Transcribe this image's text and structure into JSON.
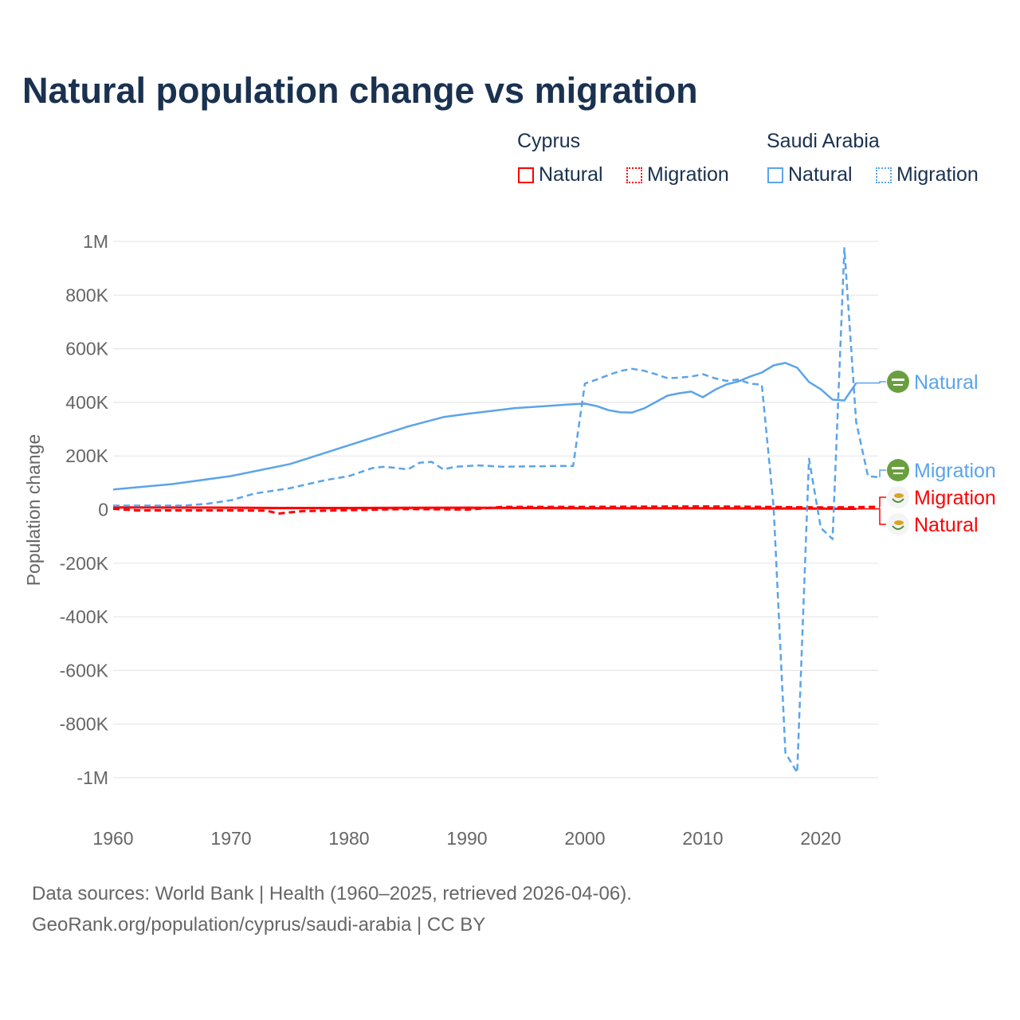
{
  "title": "Natural population change vs migration",
  "legend": {
    "groups": [
      {
        "name": "Cyprus",
        "color": "#ff0000",
        "items": [
          "Natural",
          "Migration"
        ]
      },
      {
        "name": "Saudi Arabia",
        "color": "#5ba4ea",
        "items": [
          "Natural",
          "Migration"
        ]
      }
    ]
  },
  "footer": {
    "line1": "Data sources: World Bank | Health (1960–2025, retrieved 2026-04-06).",
    "line2": "GeoRank.org/population/cyprus/saudi-arabia | CC BY"
  },
  "chart_data": {
    "type": "line",
    "title": "Natural population change vs migration",
    "ylabel": "Population change",
    "xlabel": "",
    "xlim": [
      1960,
      2025
    ],
    "ylim": [
      -1000000,
      1000000
    ],
    "xticks": [
      "1960",
      "1970",
      "1980",
      "1990",
      "2000",
      "2010",
      "2020"
    ],
    "yticks": [
      {
        "v": 1000000,
        "l": "1M"
      },
      {
        "v": 800000,
        "l": "800K"
      },
      {
        "v": 600000,
        "l": "600K"
      },
      {
        "v": 400000,
        "l": "400K"
      },
      {
        "v": 200000,
        "l": "200K"
      },
      {
        "v": 0,
        "l": "0"
      },
      {
        "v": -200000,
        "l": "-200K"
      },
      {
        "v": -400000,
        "l": "-400K"
      },
      {
        "v": -600000,
        "l": "-600K"
      },
      {
        "v": -800000,
        "l": "-800K"
      },
      {
        "v": -1000000,
        "l": "-1M"
      }
    ],
    "grid": true,
    "series": [
      {
        "name": "Saudi Arabia Natural",
        "label": "Natural",
        "country": "Saudi Arabia",
        "color": "#5ba4ea",
        "dash": false,
        "x": [
          1960,
          1965,
          1970,
          1975,
          1980,
          1985,
          1988,
          1990,
          1994,
          1998,
          1999,
          2000,
          2001,
          2002,
          2003,
          2004,
          2005,
          2006,
          2007,
          2008,
          2009,
          2010,
          2011,
          2012,
          2013,
          2014,
          2015,
          2016,
          2017,
          2018,
          2019,
          2020,
          2021,
          2022,
          2023
        ],
        "y": [
          75000,
          95000,
          125000,
          170000,
          240000,
          310000,
          345000,
          357000,
          378000,
          390000,
          393000,
          395000,
          386000,
          371000,
          363000,
          362000,
          377000,
          401000,
          425000,
          434000,
          440000,
          419000,
          446000,
          467000,
          478000,
          496000,
          511000,
          538000,
          547000,
          529000,
          476000,
          449000,
          410000,
          407000,
          472000
        ]
      },
      {
        "name": "Saudi Arabia Migration",
        "label": "Migration",
        "country": "Saudi Arabia",
        "color": "#5ba4ea",
        "dash": true,
        "x": [
          1960,
          1966,
          1968,
          1970,
          1972,
          1975,
          1978,
          1980,
          1982,
          1983,
          1985,
          1986,
          1987,
          1988,
          1989,
          1991,
          1993,
          1998,
          1999,
          2000,
          2001,
          2002,
          2003,
          2004,
          2005,
          2006,
          2007,
          2008,
          2009,
          2010,
          2011,
          2012,
          2013,
          2014,
          2015,
          2016,
          2017,
          2018,
          2019,
          2020,
          2021,
          2022,
          2023,
          2024,
          2025
        ],
        "y": [
          15000,
          15000,
          22000,
          35000,
          60000,
          80000,
          110000,
          125000,
          155000,
          160000,
          150000,
          175000,
          178000,
          150000,
          160000,
          165000,
          160000,
          163000,
          163000,
          470000,
          485000,
          502000,
          517000,
          525000,
          518000,
          505000,
          490000,
          492000,
          496000,
          505000,
          490000,
          480000,
          485000,
          470000,
          466000,
          10000,
          -907000,
          -981000,
          190000,
          -68000,
          -110000,
          975000,
          327000,
          125000,
          120000
        ]
      },
      {
        "name": "Cyprus Natural",
        "label": "Natural",
        "country": "Cyprus",
        "color": "#ff0000",
        "dash": false,
        "x": [
          1960,
          1970,
          1974,
          1980,
          1990,
          2000,
          2010,
          2020,
          2023
        ],
        "y": [
          8000,
          7000,
          6000,
          6000,
          7000,
          5000,
          5000,
          4000,
          3000
        ]
      },
      {
        "name": "Cyprus Migration",
        "label": "Migration",
        "country": "Cyprus",
        "color": "#ff0000",
        "dash": true,
        "x": [
          1960,
          1962,
          1970,
          1973,
          1974,
          1976,
          1980,
          1985,
          1990,
          1993,
          2000,
          2010,
          2015,
          2020,
          2023,
          2024,
          2025
        ],
        "y": [
          3000,
          -3000,
          -3000,
          -4000,
          -15000,
          -6000,
          -2000,
          2000,
          0,
          10000,
          10000,
          12000,
          10000,
          8000,
          9000,
          10000,
          10000
        ]
      }
    ]
  }
}
